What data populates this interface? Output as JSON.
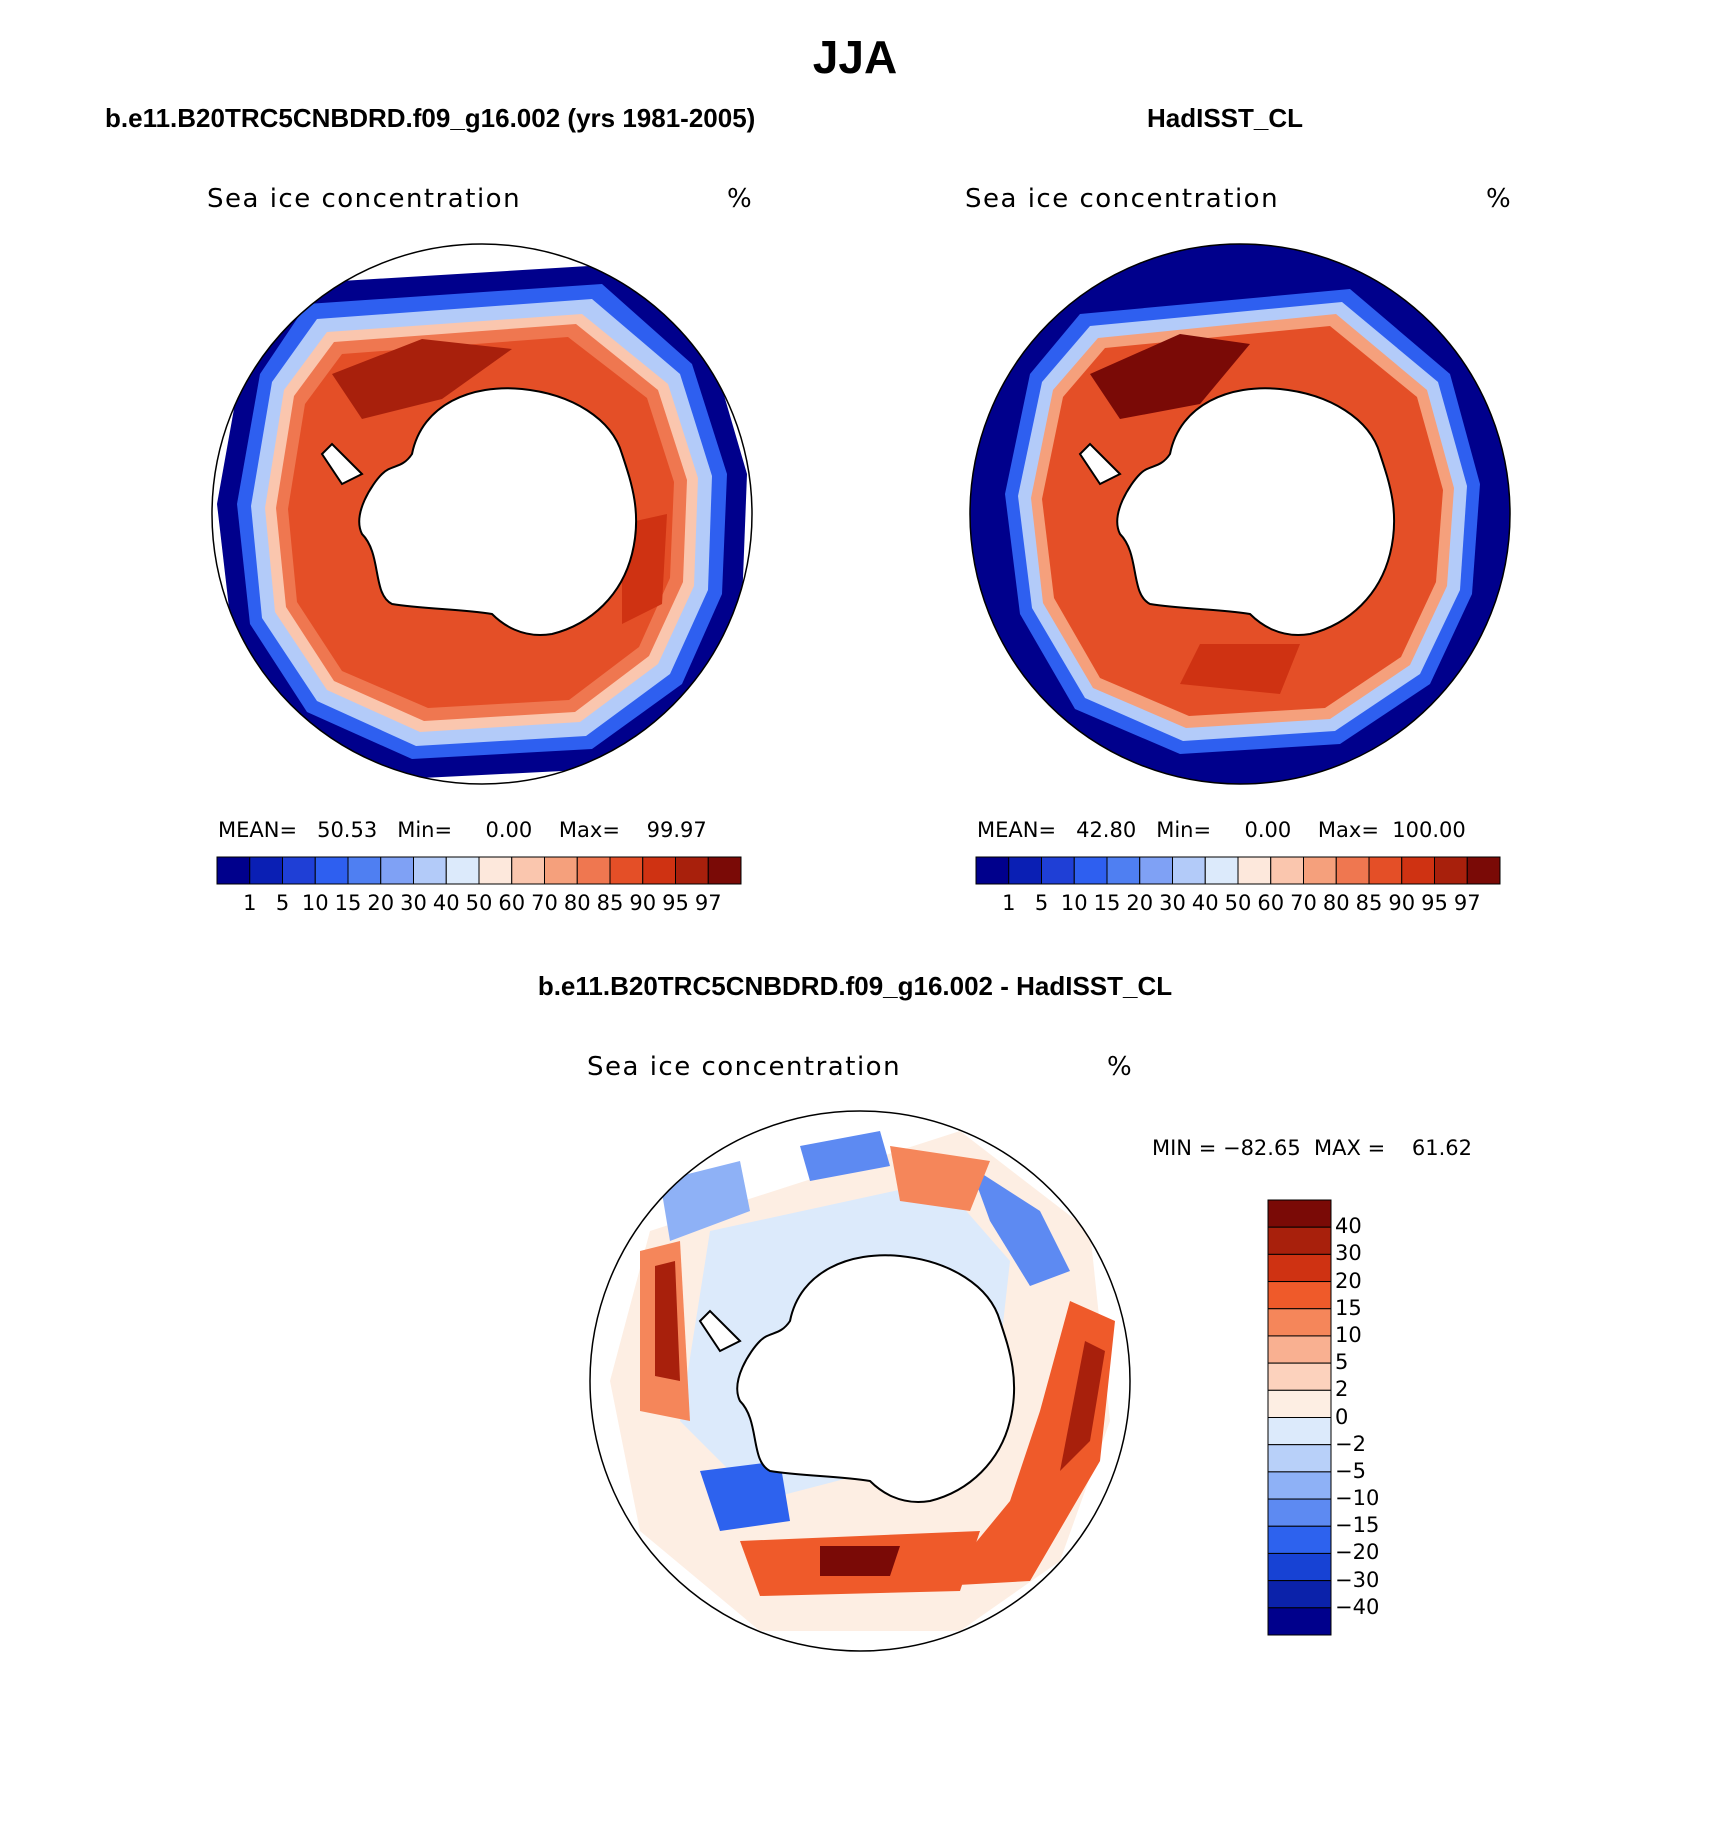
{
  "figure": {
    "title": "JJA",
    "diff_title": "b.e11.B20TRC5CNBDRD.f09_g16.002 - HadISST_CL"
  },
  "panels": [
    {
      "id": "model",
      "title": "b.e11.B20TRC5CNBDRD.f09_g16.002 (yrs 1981-2005)",
      "variable": "Sea ice concentration",
      "units": "%",
      "stats_text": "MEAN=   50.53   Min=     0.00    Max=    99.97",
      "stats": {
        "mean": 50.53,
        "min": 0.0,
        "max": 99.97
      }
    },
    {
      "id": "obs",
      "title": "HadISST_CL",
      "variable": "Sea ice concentration",
      "units": "%",
      "stats_text": "MEAN=   42.80   Min=     0.00    Max=  100.00",
      "stats": {
        "mean": 42.8,
        "min": 0.0,
        "max": 100.0
      }
    },
    {
      "id": "diff",
      "variable": "Sea ice concentration",
      "units": "%",
      "stats_text": "MIN = −82.65  MAX =    61.62",
      "stats": {
        "min": -82.65,
        "max": 61.62
      }
    }
  ],
  "colorbars": {
    "concentration": {
      "levels": [
        "1",
        "5",
        "10",
        "15",
        "20",
        "30",
        "40",
        "50",
        "60",
        "70",
        "80",
        "85",
        "90",
        "95",
        "97"
      ],
      "colors": [
        "#00008c",
        "#0a1fb4",
        "#1f3fd6",
        "#2e5ff0",
        "#4f7ff2",
        "#7fa1f5",
        "#b3cbf9",
        "#dceafb",
        "#fde8dc",
        "#fac6ae",
        "#f5a07c",
        "#ef7750",
        "#e44f27",
        "#cf3212",
        "#a8200c",
        "#7a0a06"
      ]
    },
    "difference": {
      "levels": [
        "40",
        "30",
        "20",
        "15",
        "10",
        "5",
        "2",
        "0",
        "−2",
        "−5",
        "−10",
        "−15",
        "−20",
        "−30",
        "−40"
      ],
      "colors": [
        "#7a0a06",
        "#a8200c",
        "#cf3212",
        "#ef5a2a",
        "#f5865a",
        "#f9b091",
        "#fcd2bd",
        "#fdeee3",
        "#dceafb",
        "#b8d0f9",
        "#8eb1f6",
        "#5d8af2",
        "#2d62ee",
        "#1742d4",
        "#0b22aa",
        "#00008c"
      ]
    }
  },
  "chart_data": {
    "type": "heatmap",
    "projection": "south polar stereographic",
    "season": "JJA",
    "maps": [
      {
        "name": "b.e11.B20TRC5CNBDRD.f09_g16.002 (yrs 1981-2005)",
        "field": "Sea ice concentration",
        "units": "%",
        "mean": 50.53,
        "min": 0.0,
        "max": 99.97
      },
      {
        "name": "HadISST_CL",
        "field": "Sea ice concentration",
        "units": "%",
        "mean": 42.8,
        "min": 0.0,
        "max": 100.0
      },
      {
        "name": "b.e11.B20TRC5CNBDRD.f09_g16.002 - HadISST_CL",
        "field": "Sea ice concentration",
        "units": "%",
        "min": -82.65,
        "max": 61.62
      }
    ]
  }
}
